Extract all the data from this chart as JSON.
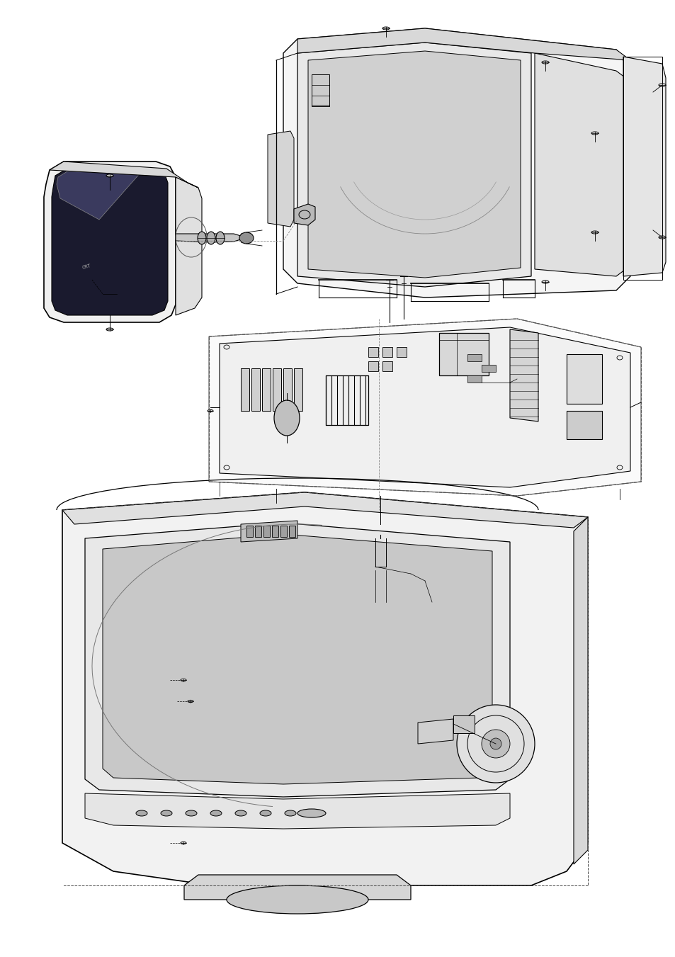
{
  "bg_color": "#ffffff",
  "line_color": "#000000",
  "dash_color": "#444444",
  "fig_width": 9.54,
  "fig_height": 13.51,
  "dpi": 100
}
